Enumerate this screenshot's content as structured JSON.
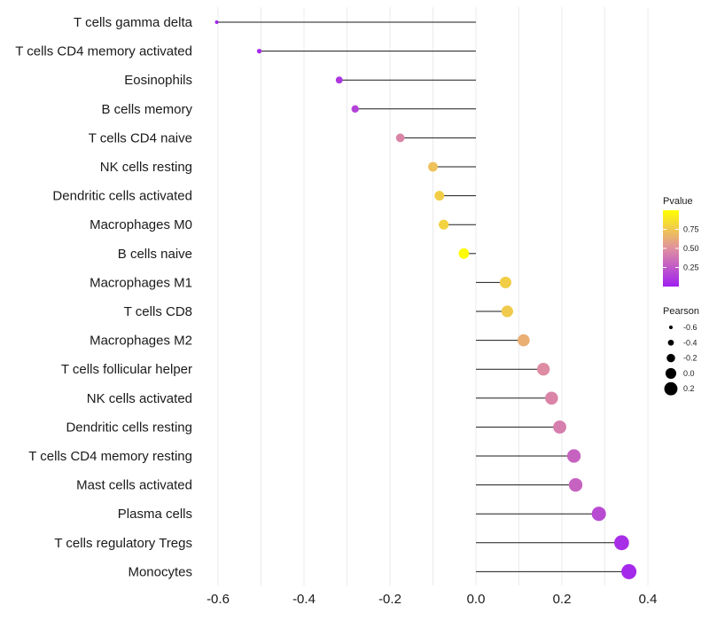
{
  "chart_data": {
    "type": "lollipop",
    "title": "",
    "xlabel": "",
    "ylabel": "",
    "xlim": [
      -0.64,
      0.4
    ],
    "xticks": [
      -0.6,
      -0.4,
      -0.2,
      0.0,
      0.2,
      0.4
    ],
    "xtick_labels": [
      "-0.6",
      "-0.4",
      "-0.2",
      "0.0",
      "0.2",
      "0.4"
    ],
    "grid": true,
    "categories": [
      "T cells gamma delta",
      "T cells CD4 memory activated",
      "Eosinophils",
      "B cells memory",
      "T cells CD4 naive",
      "NK cells resting",
      "Dendritic cells activated",
      "Macrophages M0",
      "B cells naive",
      "Macrophages M1",
      "T cells CD8",
      "Macrophages M2",
      "T cells follicular helper",
      "NK cells activated",
      "Dendritic cells resting",
      "T cells CD4 memory resting",
      "Mast cells activated",
      "Plasma cells",
      "T cells regulatory  Tregs ",
      "Monocytes"
    ],
    "pearson": [
      -0.603,
      -0.504,
      -0.318,
      -0.281,
      -0.176,
      -0.1,
      -0.085,
      -0.075,
      -0.028,
      0.069,
      0.073,
      0.111,
      0.157,
      0.176,
      0.195,
      0.228,
      0.232,
      0.286,
      0.339,
      0.356
    ],
    "pvalue": [
      0.02,
      0.04,
      0.1,
      0.15,
      0.45,
      0.72,
      0.78,
      0.8,
      0.98,
      0.78,
      0.76,
      0.64,
      0.48,
      0.45,
      0.42,
      0.3,
      0.3,
      0.19,
      0.06,
      0.04
    ],
    "legend_color": {
      "title": "Pvalue",
      "ticks": [
        0.25,
        0.5,
        0.75
      ],
      "tick_labels": [
        "0.25",
        "0.50",
        "0.75"
      ],
      "range": [
        0.0,
        1.0
      ],
      "low_color": "#a020f0",
      "mid_color": "#e090a0",
      "high_color": "#ffff00"
    },
    "legend_size": {
      "title": "Pearson",
      "values": [
        -0.6,
        -0.4,
        -0.2,
        0.0,
        0.2
      ],
      "labels": [
        "-0.6",
        "-0.4",
        "-0.2",
        "0.0",
        "0.2"
      ]
    },
    "legend_position": "right"
  }
}
